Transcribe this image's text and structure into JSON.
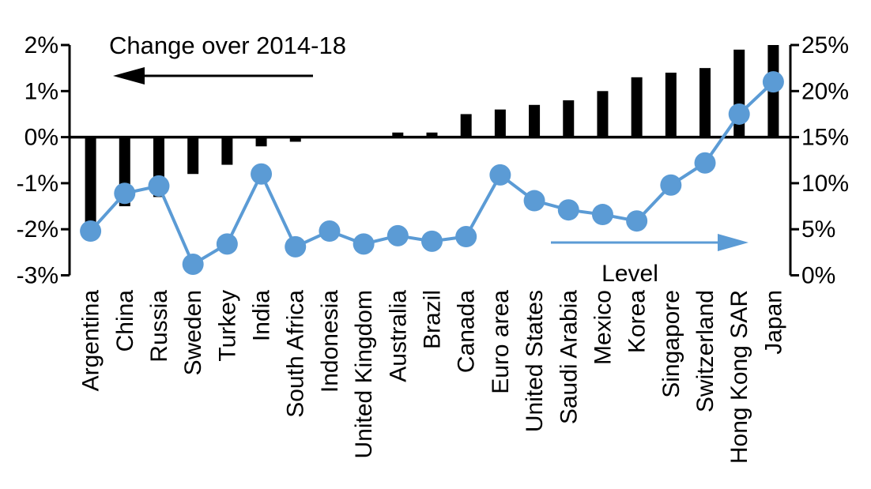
{
  "page": {
    "background": "#FFFFFF"
  },
  "chart_data": {
    "type": "bar",
    "subtype": "dual-axis combo: bars (left axis) + line with markers (right axis)",
    "title": "Change over 2014-18",
    "categories": [
      "Argentina",
      "China",
      "Russia",
      "Sweden",
      "Turkey",
      "India",
      "South Africa",
      "Indonesia",
      "United Kingdom",
      "Australia",
      "Brazil",
      "Canada",
      "Euro area",
      "United States",
      "Saudi Arabia",
      "Mexico",
      "Korea",
      "Singapore",
      "Switzerland",
      "Hong Kong SAR",
      "Japan"
    ],
    "series": [
      {
        "name": "Change over 2014-18",
        "type": "bar",
        "axis": "left",
        "color": "#000000",
        "values": [
          -1.9,
          -1.5,
          -1.3,
          -0.8,
          -0.6,
          -0.2,
          -0.1,
          0,
          0,
          0.1,
          0.1,
          0.5,
          0.6,
          0.7,
          0.8,
          1.0,
          1.3,
          1.4,
          1.5,
          1.9,
          2.0
        ]
      },
      {
        "name": "Level",
        "type": "line",
        "axis": "right",
        "color": "#5B9BD5",
        "values": [
          4.8,
          8.9,
          9.7,
          1.2,
          3.4,
          11.0,
          3.1,
          4.8,
          3.4,
          4.3,
          3.7,
          4.2,
          10.9,
          8.1,
          7.1,
          6.6,
          5.9,
          9.8,
          12.2,
          17.5,
          21.0
        ]
      }
    ],
    "left_axis": {
      "min": -3,
      "max": 2,
      "tick_labels": [
        "2%",
        "1%",
        "0%",
        "-1%",
        "-2%",
        "-3%"
      ],
      "tick_values": [
        2,
        1,
        0,
        -1,
        -2,
        -3
      ]
    },
    "right_axis": {
      "min": 0,
      "max": 25,
      "tick_labels": [
        "25%",
        "20%",
        "15%",
        "10%",
        "5%",
        "0%"
      ],
      "tick_values": [
        25,
        20,
        15,
        10,
        5,
        0
      ]
    },
    "annotations": {
      "bar_series_label": "Change over 2014-18",
      "bar_series_arrow": "left",
      "line_series_label": "Level",
      "line_series_arrow": "right"
    },
    "grid": false,
    "legend_position": "none (in-plot arrow annotations)",
    "x_labels_rotation": 90
  }
}
